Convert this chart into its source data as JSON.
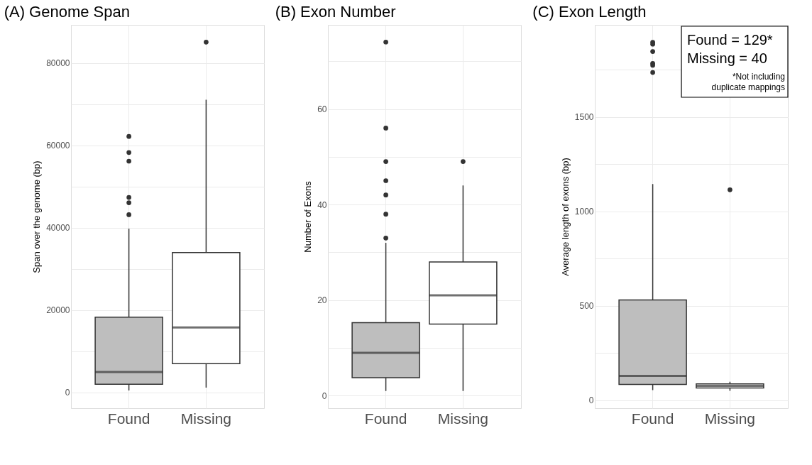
{
  "chart_data": [
    {
      "type": "box",
      "title": "(A)   Genome Span",
      "ylabel": "Span over the genome (bp)",
      "categories": [
        "Found",
        "Missing"
      ],
      "colors": [
        "#bebebe",
        "#ffffff"
      ],
      "boxes": [
        {
          "low": 500,
          "q1": 2000,
          "median": 5000,
          "q3": 18300,
          "high": 39800,
          "outliers": [
            62200,
            58300,
            56200,
            47400,
            46100,
            43200
          ]
        },
        {
          "low": 1200,
          "q1": 7000,
          "median": 15800,
          "q3": 34000,
          "high": 71100,
          "outliers": [
            85100
          ]
        }
      ],
      "ylim": [
        -3800,
        89300
      ],
      "yticks": [
        0,
        {
          "value": 10000,
          "label": null
        },
        20000,
        {
          "value": 30000,
          "label": null
        },
        40000,
        {
          "value": 50000,
          "label": null
        },
        60000,
        {
          "value": 70000,
          "label": null
        },
        80000
      ],
      "grid": true
    },
    {
      "type": "box",
      "title": "(B)  Exon Number",
      "ylabel": "Number of Exons",
      "categories": [
        "Found",
        "Missing"
      ],
      "colors": [
        "#bebebe",
        "#ffffff"
      ],
      "boxes": [
        {
          "low": 1,
          "q1": 3.8,
          "median": 9,
          "q3": 15.3,
          "high": 32,
          "outliers": [
            74,
            56,
            49,
            45,
            42,
            38,
            33
          ]
        },
        {
          "low": 1,
          "q1": 15,
          "median": 21,
          "q3": 28,
          "high": 44,
          "outliers": [
            49
          ]
        }
      ],
      "ylim": [
        -2.6,
        77.6
      ],
      "yticks": [
        0,
        {
          "value": 10,
          "label": null
        },
        20,
        {
          "value": 30,
          "label": null
        },
        40,
        {
          "value": 50,
          "label": null
        },
        60,
        {
          "value": 70,
          "label": null
        }
      ],
      "grid": true
    },
    {
      "type": "box",
      "title": "(C)  Exon Length",
      "ylabel": "Average length of exons (bp)",
      "categories": [
        "Found",
        "Missing"
      ],
      "colors": [
        "#bebebe",
        "#ffffff"
      ],
      "boxes": [
        {
          "low": 54,
          "q1": 84,
          "median": 129,
          "q3": 531,
          "high": 1144,
          "outliers": [
            1895,
            1885,
            1846,
            1783,
            1773,
            1735
          ]
        },
        {
          "low": 50,
          "q1": 65,
          "median": 76,
          "q3": 87,
          "high": 98,
          "outliers": [
            1114
          ]
        }
      ],
      "ylim": [
        -42,
        1987
      ],
      "yticks": [
        0,
        {
          "value": 250,
          "label": null
        },
        500,
        {
          "value": 750,
          "label": null
        },
        1000,
        {
          "value": 1250,
          "label": null
        },
        1500,
        {
          "value": 1750,
          "label": null
        }
      ],
      "grid": true,
      "annotations": [
        "Found = 129*\nMissing = 40",
        "*Not including\nduplicate mappings"
      ]
    }
  ]
}
